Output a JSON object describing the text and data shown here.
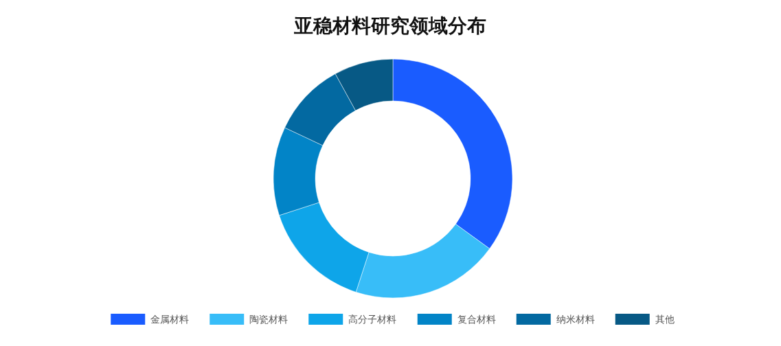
{
  "chart_data": {
    "type": "donut",
    "title": "亚稳材料研究领域分布",
    "categories": [
      "金属材料",
      "陶瓷材料",
      "高分子材料",
      "复合材料",
      "纳米材料",
      "其他"
    ],
    "values": [
      35,
      20,
      15,
      12,
      10,
      8
    ],
    "colors": [
      "#1a5cff",
      "#38bdf8",
      "#0ea5e9",
      "#0284c7",
      "#0369a1",
      "#075985"
    ],
    "legend": "bottom"
  }
}
